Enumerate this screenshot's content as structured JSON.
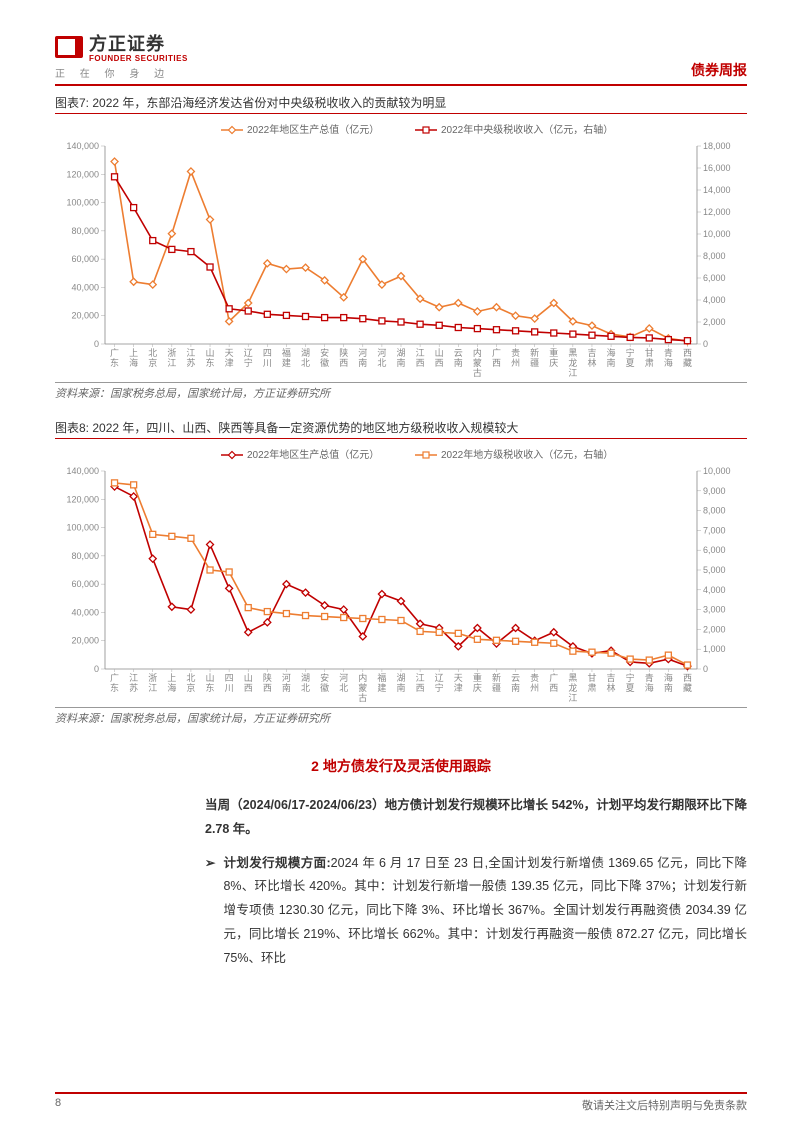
{
  "header": {
    "logo_cn": "方正证券",
    "logo_en": "FOUNDER SECURITIES",
    "tagline": "正 在 你 身 边",
    "report_type": "债券周报"
  },
  "chart7": {
    "title": "图表7: 2022 年，东部沿海经济发达省份对中央级税收收入的贡献较为明显",
    "type": "line",
    "legend": [
      "2022年地区生产总值（亿元）",
      "2022年中央级税收收入（亿元，右轴）"
    ],
    "series_colors": [
      "#ed7d31",
      "#c00000"
    ],
    "marker_styles": [
      "diamond",
      "square"
    ],
    "background_color": "#ffffff",
    "grid": false,
    "y_left": {
      "min": 0,
      "max": 140000,
      "step": 20000,
      "color": "#888888"
    },
    "y_right": {
      "min": 0,
      "max": 18000,
      "step": 2000,
      "color": "#888888"
    },
    "categories": [
      "广东",
      "上海",
      "北京",
      "浙江",
      "江苏",
      "山东",
      "天津",
      "辽宁",
      "四川",
      "福建",
      "湖北",
      "安徽",
      "陕西",
      "河南",
      "河北",
      "湖南",
      "江西",
      "山西",
      "云南",
      "内蒙古",
      "广西",
      "贵州",
      "新疆",
      "重庆",
      "黑龙江",
      "吉林",
      "海南",
      "宁夏",
      "甘肃",
      "青海",
      "西藏"
    ],
    "gdp_values": [
      129000,
      44000,
      42000,
      78000,
      122000,
      88000,
      16000,
      29000,
      57000,
      53000,
      54000,
      45000,
      33000,
      60000,
      42000,
      48000,
      32000,
      26000,
      29000,
      23000,
      26000,
      20000,
      18000,
      29000,
      16000,
      13000,
      7000,
      5000,
      11000,
      4000,
      2000
    ],
    "tax_values": [
      15200,
      12400,
      9400,
      8600,
      8400,
      7000,
      3200,
      3000,
      2700,
      2600,
      2500,
      2400,
      2400,
      2300,
      2100,
      2000,
      1800,
      1700,
      1500,
      1400,
      1300,
      1200,
      1100,
      1000,
      900,
      800,
      700,
      600,
      550,
      400,
      300
    ],
    "source": "资料来源：国家税务总局，国家统计局，方正证券研究所"
  },
  "chart8": {
    "title": "图表8: 2022 年，四川、山西、陕西等具备一定资源优势的地区地方级税收收入规模较大",
    "type": "line",
    "legend": [
      "2022年地区生产总值（亿元）",
      "2022年地方级税收收入（亿元，右轴）"
    ],
    "series_colors": [
      "#c00000",
      "#ed7d31"
    ],
    "marker_styles": [
      "diamond",
      "square"
    ],
    "background_color": "#ffffff",
    "grid": false,
    "y_left": {
      "min": 0,
      "max": 140000,
      "step": 20000,
      "color": "#888888"
    },
    "y_right": {
      "min": 0,
      "max": 10000,
      "step": 1000,
      "color": "#888888"
    },
    "categories": [
      "广东",
      "江苏",
      "浙江",
      "上海",
      "北京",
      "山东",
      "四川",
      "山西",
      "陕西",
      "河南",
      "湖北",
      "安徽",
      "河北",
      "内蒙古",
      "福建",
      "湖南",
      "江西",
      "辽宁",
      "天津",
      "重庆",
      "新疆",
      "云南",
      "贵州",
      "广西",
      "黑龙江",
      "甘肃",
      "吉林",
      "宁夏",
      "青海",
      "海南",
      "西藏"
    ],
    "gdp_values": [
      129000,
      122000,
      78000,
      44000,
      42000,
      88000,
      57000,
      26000,
      33000,
      60000,
      54000,
      45000,
      42000,
      23000,
      53000,
      48000,
      32000,
      29000,
      16000,
      29000,
      18000,
      29000,
      20000,
      26000,
      16000,
      11000,
      13000,
      5000,
      4000,
      7000,
      2000
    ],
    "tax_values": [
      9400,
      9300,
      6800,
      6700,
      6600,
      5000,
      4900,
      3100,
      2900,
      2800,
      2700,
      2650,
      2600,
      2550,
      2500,
      2450,
      1900,
      1850,
      1800,
      1500,
      1450,
      1400,
      1350,
      1300,
      900,
      850,
      800,
      500,
      450,
      700,
      200
    ],
    "source": "资料来源：国家税务总局，国家统计局，方正证券研究所"
  },
  "section2": {
    "heading": "2 地方债发行及灵活使用跟踪",
    "intro_bold": "当周（2024/06/17-2024/06/23）地方债计划发行规模环比增长 542%，计划平均发行期限环比下降 2.78 年。",
    "bullet_label": "计划发行规模方面:",
    "bullet_body": "2024 年 6 月 17 日至 23 日,全国计划发行新增债 1369.65 亿元，同比下降 8%、环比增长 420%。其中：计划发行新增一般债 139.35 亿元，同比下降 37%；计划发行新增专项债 1230.30 亿元，同比下降 3%、环比增长 367%。全国计划发行再融资债 2034.39 亿元，同比增长 219%、环比增长 662%。其中：计划发行再融资一般债 872.27 亿元，同比增长 75%、环比"
  },
  "footer": {
    "page": "8",
    "disclaimer": "敬请关注文后特别声明与免责条款"
  }
}
